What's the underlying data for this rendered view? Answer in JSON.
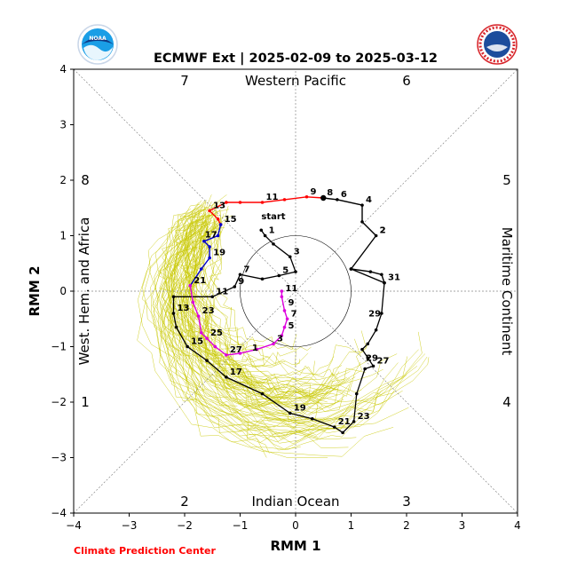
{
  "chart_data": {
    "type": "line",
    "title": "ECMWF Ext | 2025-02-09 to 2025-03-12",
    "xlabel": "RMM 1",
    "ylabel": "RMM 2",
    "xlim": [
      -4,
      4
    ],
    "ylim": [
      -4,
      4
    ],
    "ticks": [
      -4,
      -3,
      -2,
      -1,
      0,
      1,
      2,
      3,
      4
    ],
    "grid": false,
    "phase_regions": {
      "top": "Western Pacific",
      "bottom": "Indian Ocean",
      "left": "West. Hem. and Africa",
      "right": "Maritime Continent"
    },
    "phase_numbers": [
      "1",
      "2",
      "3",
      "4",
      "5",
      "6",
      "7",
      "8"
    ],
    "start_label": "start",
    "colors": {
      "observed": "#000000",
      "red_segment": "#ff0000",
      "blue_segment": "#0000cc",
      "magenta_segment": "#dd00dd",
      "ensemble": "#c8c800",
      "credit": "#ff0000"
    },
    "observed_points": [
      [
        1.0,
        0.4,
        "",
        ""
      ],
      [
        1.6,
        0.15,
        "31",
        "black"
      ],
      [
        1.55,
        -0.4,
        "",
        ""
      ],
      [
        1.45,
        -0.7,
        "",
        ""
      ],
      [
        1.3,
        -0.95,
        "",
        ""
      ],
      [
        1.2,
        -1.05,
        "",
        ""
      ],
      [
        1.3,
        -1.2,
        "",
        ""
      ],
      [
        1.4,
        -1.35,
        "27",
        "black"
      ],
      [
        1.25,
        -1.4,
        "",
        ""
      ],
      [
        1.1,
        -1.85,
        "",
        ""
      ],
      [
        1.05,
        -2.35,
        "23",
        "black"
      ],
      [
        0.85,
        -2.55,
        "",
        ""
      ],
      [
        0.7,
        -2.45,
        "21",
        "black"
      ],
      [
        0.3,
        -2.3,
        "",
        ""
      ],
      [
        -0.1,
        -2.2,
        "19",
        "black"
      ],
      [
        -0.6,
        -1.85,
        "",
        ""
      ],
      [
        -1.25,
        -1.55,
        "17",
        "black"
      ],
      [
        -1.6,
        -1.25,
        "",
        ""
      ],
      [
        -1.95,
        -1.0,
        "15",
        "black"
      ],
      [
        -2.15,
        -0.65,
        "",
        ""
      ],
      [
        -2.2,
        -0.4,
        "13",
        "black"
      ],
      [
        -2.2,
        -0.1,
        "",
        ""
      ],
      [
        -1.5,
        -0.1,
        "11",
        "black"
      ],
      [
        -1.1,
        0.08,
        "9",
        "black"
      ],
      [
        -1.0,
        0.3,
        "7",
        "black"
      ],
      [
        -0.6,
        0.22,
        "",
        ""
      ],
      [
        -0.3,
        0.28,
        "5",
        "black"
      ],
      [
        0.0,
        0.35,
        "",
        ""
      ],
      [
        -0.1,
        0.62,
        "3",
        "black"
      ],
      [
        -0.4,
        0.85,
        "",
        ""
      ],
      [
        -0.55,
        1.0,
        "1",
        "black"
      ],
      [
        -0.62,
        1.1,
        "",
        ""
      ]
    ],
    "observed_tail": [
      [
        -0.55,
        1.0
      ],
      [
        -0.05,
        0.55
      ],
      [
        0.95,
        0.95
      ],
      [
        1.45,
        0.9
      ]
    ],
    "forecast_segments": [
      {
        "color": "#000000",
        "points": [
          [
            1.0,
            0.4
          ],
          [
            1.35,
            0.35
          ],
          [
            1.55,
            0.3
          ],
          [
            1.6,
            0.15
          ]
        ],
        "labels": []
      },
      {
        "color": "#000000",
        "points": [
          [
            1.0,
            0.4
          ],
          [
            1.45,
            1.0
          ],
          [
            1.2,
            1.25
          ],
          [
            1.2,
            1.55
          ],
          [
            0.75,
            1.65
          ],
          [
            0.5,
            1.68
          ]
        ],
        "labels": [
          [
            1.2,
            1.55,
            "4"
          ],
          [
            0.75,
            1.65,
            "6"
          ],
          [
            1.45,
            1.0,
            "2"
          ]
        ]
      },
      {
        "color": "#ff0000",
        "points": [
          [
            0.5,
            1.68
          ],
          [
            0.2,
            1.7
          ],
          [
            -0.2,
            1.65
          ],
          [
            -0.6,
            1.6
          ],
          [
            -1.0,
            1.6
          ],
          [
            -1.25,
            1.6
          ],
          [
            -1.55,
            1.45
          ],
          [
            -1.4,
            1.3
          ],
          [
            -1.35,
            1.2
          ]
        ],
        "labels": [
          [
            0.5,
            1.68,
            "8"
          ],
          [
            0.2,
            1.7,
            "9"
          ],
          [
            -0.6,
            1.6,
            "11"
          ],
          [
            -1.55,
            1.45,
            "13"
          ],
          [
            -1.35,
            1.2,
            "15"
          ]
        ]
      },
      {
        "color": "#0000cc",
        "points": [
          [
            -1.35,
            1.2
          ],
          [
            -1.4,
            1.0
          ],
          [
            -1.65,
            0.9
          ],
          [
            -1.55,
            0.8
          ],
          [
            -1.55,
            0.6
          ],
          [
            -1.7,
            0.4
          ],
          [
            -1.9,
            0.1
          ]
        ],
        "labels": [
          [
            -1.7,
            0.92,
            "17"
          ],
          [
            -1.55,
            0.6,
            "19"
          ],
          [
            -1.9,
            0.1,
            "21"
          ]
        ]
      },
      {
        "color": "#dd00dd",
        "points": [
          [
            -1.9,
            0.1
          ],
          [
            -1.85,
            -0.2
          ],
          [
            -1.75,
            -0.45
          ],
          [
            -1.7,
            -0.75
          ],
          [
            -1.6,
            -0.85
          ],
          [
            -1.45,
            -1.0
          ],
          [
            -1.25,
            -1.15
          ],
          [
            -1.0,
            -1.12
          ],
          [
            -0.7,
            -1.05
          ],
          [
            -0.4,
            -0.95
          ],
          [
            -0.25,
            -0.8
          ],
          [
            -0.2,
            -0.65
          ],
          [
            -0.15,
            -0.5
          ],
          [
            -0.2,
            -0.35
          ],
          [
            -0.25,
            -0.1
          ],
          [
            -0.25,
            0.0
          ]
        ],
        "labels": [
          [
            -1.75,
            -0.45,
            "23"
          ],
          [
            -1.6,
            -0.85,
            "25"
          ],
          [
            -1.25,
            -1.15,
            "27"
          ],
          [
            -0.85,
            -1.12,
            "1"
          ],
          [
            -0.4,
            -0.95,
            "3"
          ],
          [
            -0.2,
            -0.72,
            "5"
          ],
          [
            -0.15,
            -0.5,
            "7"
          ],
          [
            -0.2,
            -0.3,
            "9"
          ],
          [
            -0.25,
            -0.05,
            "11"
          ]
        ]
      }
    ],
    "extra_labels": [
      [
        1.45,
        1.0,
        "2"
      ],
      [
        1.2,
        -1.3,
        "29"
      ],
      [
        1.25,
        -0.5,
        "29"
      ]
    ]
  },
  "credit": "Climate Prediction Center",
  "logos": {
    "left": "noaa-logo-icon",
    "left_text": "NOAA",
    "right": "national-weather-service-logo-icon"
  }
}
